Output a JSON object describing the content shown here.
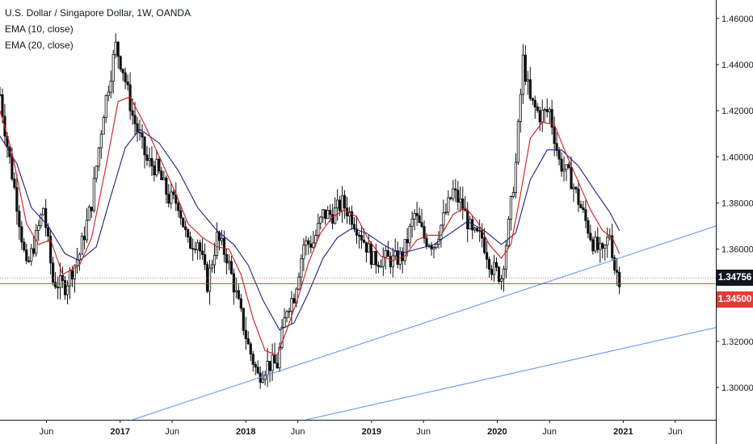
{
  "chart_data": {
    "type": "candlestick",
    "title": "U.S. Dollar / Singapore Dollar, 1W, OANDA",
    "symbol": "U.S. Dollar / Singapore Dollar",
    "interval": "1W",
    "source": "OANDA",
    "indicators": [
      "EMA (10, close)",
      "EMA (20, close)"
    ],
    "indicator_colors": {
      "EMA (10, close)": "#d11c1c",
      "EMA (20, close)": "#1e1e8c"
    },
    "ylim": [
      1.286,
      1.468
    ],
    "y_ticks": [
      1.3,
      1.32,
      1.34,
      1.36,
      1.38,
      1.4,
      1.42,
      1.44,
      1.46
    ],
    "y_tick_labels": [
      "1.30000",
      "1.32000",
      "1.34000",
      "1.36000",
      "1.38000",
      "1.40000",
      "1.42000",
      "1.44000",
      "1.46000"
    ],
    "x_range": [
      "2016-01-18",
      "2021-09-27"
    ],
    "x_ticks": [
      {
        "date": "2016-06-01",
        "label": "Jun"
      },
      {
        "date": "2017-01-01",
        "label": "2017"
      },
      {
        "date": "2017-06-01",
        "label": "Jun"
      },
      {
        "date": "2018-01-01",
        "label": "2018"
      },
      {
        "date": "2018-06-01",
        "label": "Jun"
      },
      {
        "date": "2019-01-01",
        "label": "2019"
      },
      {
        "date": "2019-06-01",
        "label": "Jun"
      },
      {
        "date": "2020-01-01",
        "label": "2020"
      },
      {
        "date": "2020-06-01",
        "label": "Jun"
      },
      {
        "date": "2021-01-01",
        "label": "2021"
      },
      {
        "date": "2021-06-01",
        "label": "Jun"
      }
    ],
    "close_path": [
      [
        "2016-01-18",
        1.427
      ],
      [
        "2016-02-08",
        1.405
      ],
      [
        "2016-03-07",
        1.38
      ],
      [
        "2016-04-04",
        1.351
      ],
      [
        "2016-05-02",
        1.365
      ],
      [
        "2016-05-23",
        1.378
      ],
      [
        "2016-06-20",
        1.346
      ],
      [
        "2016-07-25",
        1.344
      ],
      [
        "2016-09-05",
        1.358
      ],
      [
        "2016-10-10",
        1.38
      ],
      [
        "2016-11-14",
        1.42
      ],
      [
        "2016-12-19",
        1.448
      ],
      [
        "2017-01-09",
        1.438
      ],
      [
        "2017-02-06",
        1.418
      ],
      [
        "2017-03-20",
        1.398
      ],
      [
        "2017-04-17",
        1.395
      ],
      [
        "2017-05-22",
        1.382
      ],
      [
        "2017-06-19",
        1.38
      ],
      [
        "2017-07-17",
        1.362
      ],
      [
        "2017-08-14",
        1.364
      ],
      [
        "2017-09-11",
        1.345
      ],
      [
        "2017-10-09",
        1.365
      ],
      [
        "2017-11-06",
        1.357
      ],
      [
        "2017-12-04",
        1.34
      ],
      [
        "2018-01-08",
        1.318
      ],
      [
        "2018-02-05",
        1.305
      ],
      [
        "2018-03-05",
        1.31
      ],
      [
        "2018-04-02",
        1.31
      ],
      [
        "2018-04-30",
        1.335
      ],
      [
        "2018-05-21",
        1.34
      ],
      [
        "2018-06-18",
        1.362
      ],
      [
        "2018-07-16",
        1.363
      ],
      [
        "2018-08-13",
        1.375
      ],
      [
        "2018-09-10",
        1.375
      ],
      [
        "2018-10-08",
        1.38
      ],
      [
        "2018-11-05",
        1.374
      ],
      [
        "2018-12-03",
        1.366
      ],
      [
        "2019-01-07",
        1.355
      ],
      [
        "2019-02-04",
        1.356
      ],
      [
        "2019-03-04",
        1.355
      ],
      [
        "2019-04-01",
        1.357
      ],
      [
        "2019-05-06",
        1.375
      ],
      [
        "2019-06-03",
        1.365
      ],
      [
        "2019-07-01",
        1.362
      ],
      [
        "2019-07-29",
        1.373
      ],
      [
        "2019-08-26",
        1.385
      ],
      [
        "2019-09-23",
        1.378
      ],
      [
        "2019-10-21",
        1.366
      ],
      [
        "2019-11-18",
        1.365
      ],
      [
        "2019-12-16",
        1.352
      ],
      [
        "2020-01-13",
        1.348
      ],
      [
        "2020-02-03",
        1.37
      ],
      [
        "2020-02-24",
        1.397
      ],
      [
        "2020-03-16",
        1.442
      ],
      [
        "2020-04-06",
        1.424
      ],
      [
        "2020-05-04",
        1.418
      ],
      [
        "2020-06-01",
        1.42
      ],
      [
        "2020-06-29",
        1.398
      ],
      [
        "2020-08-03",
        1.39
      ],
      [
        "2020-09-07",
        1.375
      ],
      [
        "2020-10-05",
        1.363
      ],
      [
        "2020-11-02",
        1.357
      ],
      [
        "2020-11-23",
        1.367
      ],
      [
        "2020-12-07",
        1.352
      ],
      [
        "2020-12-21",
        1.3476
      ]
    ],
    "ema10_path": [
      [
        "2016-01-18",
        1.42
      ],
      [
        "2016-02-22",
        1.402
      ],
      [
        "2016-04-04",
        1.371
      ],
      [
        "2016-05-09",
        1.362
      ],
      [
        "2016-06-13",
        1.364
      ],
      [
        "2016-07-18",
        1.349
      ],
      [
        "2016-09-05",
        1.353
      ],
      [
        "2016-10-10",
        1.365
      ],
      [
        "2016-11-21",
        1.396
      ],
      [
        "2016-12-26",
        1.424
      ],
      [
        "2017-01-30",
        1.426
      ],
      [
        "2017-03-13",
        1.414
      ],
      [
        "2017-05-01",
        1.398
      ],
      [
        "2017-06-12",
        1.384
      ],
      [
        "2017-07-17",
        1.371
      ],
      [
        "2017-08-28",
        1.365
      ],
      [
        "2017-10-09",
        1.361
      ],
      [
        "2017-11-13",
        1.36
      ],
      [
        "2017-12-18",
        1.349
      ],
      [
        "2018-01-22",
        1.33
      ],
      [
        "2018-02-26",
        1.316
      ],
      [
        "2018-04-02",
        1.314
      ],
      [
        "2018-04-30",
        1.325
      ],
      [
        "2018-06-04",
        1.34
      ],
      [
        "2018-07-02",
        1.354
      ],
      [
        "2018-08-06",
        1.367
      ],
      [
        "2018-09-10",
        1.374
      ],
      [
        "2018-10-15",
        1.377
      ],
      [
        "2018-11-19",
        1.374
      ],
      [
        "2018-12-24",
        1.364
      ],
      [
        "2019-01-28",
        1.357
      ],
      [
        "2019-03-04",
        1.355
      ],
      [
        "2019-04-08",
        1.357
      ],
      [
        "2019-05-13",
        1.364
      ],
      [
        "2019-06-17",
        1.366
      ],
      [
        "2019-07-22",
        1.366
      ],
      [
        "2019-08-26",
        1.375
      ],
      [
        "2019-09-30",
        1.378
      ],
      [
        "2019-11-04",
        1.372
      ],
      [
        "2019-12-09",
        1.362
      ],
      [
        "2020-01-13",
        1.356
      ],
      [
        "2020-02-10",
        1.362
      ],
      [
        "2020-03-09",
        1.384
      ],
      [
        "2020-04-06",
        1.408
      ],
      [
        "2020-05-11",
        1.415
      ],
      [
        "2020-06-15",
        1.414
      ],
      [
        "2020-07-20",
        1.401
      ],
      [
        "2020-08-24",
        1.389
      ],
      [
        "2020-09-28",
        1.377
      ],
      [
        "2020-11-02",
        1.368
      ],
      [
        "2020-11-30",
        1.365
      ],
      [
        "2020-12-21",
        1.358
      ]
    ],
    "ema20_path": [
      [
        "2016-01-18",
        1.409
      ],
      [
        "2016-03-07",
        1.397
      ],
      [
        "2016-04-18",
        1.378
      ],
      [
        "2016-06-06",
        1.37
      ],
      [
        "2016-07-25",
        1.358
      ],
      [
        "2016-09-05",
        1.355
      ],
      [
        "2016-10-24",
        1.361
      ],
      [
        "2016-12-05",
        1.383
      ],
      [
        "2017-01-16",
        1.404
      ],
      [
        "2017-02-27",
        1.412
      ],
      [
        "2017-04-24",
        1.406
      ],
      [
        "2017-06-19",
        1.394
      ],
      [
        "2017-08-14",
        1.378
      ],
      [
        "2017-10-09",
        1.368
      ],
      [
        "2017-11-27",
        1.362
      ],
      [
        "2018-01-08",
        1.353
      ],
      [
        "2018-02-19",
        1.338
      ],
      [
        "2018-04-09",
        1.325
      ],
      [
        "2018-05-21",
        1.328
      ],
      [
        "2018-07-02",
        1.341
      ],
      [
        "2018-08-13",
        1.356
      ],
      [
        "2018-09-24",
        1.365
      ],
      [
        "2018-11-05",
        1.369
      ],
      [
        "2018-12-17",
        1.367
      ],
      [
        "2019-02-04",
        1.362
      ],
      [
        "2019-03-25",
        1.358
      ],
      [
        "2019-05-13",
        1.36
      ],
      [
        "2019-07-01",
        1.362
      ],
      [
        "2019-08-19",
        1.367
      ],
      [
        "2019-10-07",
        1.372
      ],
      [
        "2019-11-25",
        1.368
      ],
      [
        "2020-01-13",
        1.362
      ],
      [
        "2020-02-24",
        1.367
      ],
      [
        "2020-04-06",
        1.39
      ],
      [
        "2020-05-25",
        1.403
      ],
      [
        "2020-07-06",
        1.403
      ],
      [
        "2020-08-24",
        1.396
      ],
      [
        "2020-10-12",
        1.385
      ],
      [
        "2020-11-23",
        1.376
      ],
      [
        "2020-12-21",
        1.368
      ]
    ],
    "trend_lines": [
      {
        "from": [
          "2017-02-06",
          1.286
        ],
        "to": [
          "2021-09-27",
          1.37
        ],
        "color": "#5b8ff9"
      },
      {
        "from": [
          "2018-06-25",
          1.286
        ],
        "to": [
          "2021-09-27",
          1.326
        ],
        "color": "#5b8ff9"
      }
    ],
    "horizontal_lines": [
      {
        "value": 1.345,
        "color": "#e53935",
        "label": "1.34500",
        "style": "solid"
      },
      {
        "value": 1.34756,
        "color": "#8a8a8a",
        "label": "1.34756",
        "style": "dotted"
      }
    ],
    "price_labels": [
      {
        "label": "1.34756",
        "value": 1.34756,
        "background": "#131722"
      },
      {
        "label": "1.34500",
        "value": 1.345,
        "background": "#e53935"
      }
    ],
    "candle_color": "#111111"
  }
}
